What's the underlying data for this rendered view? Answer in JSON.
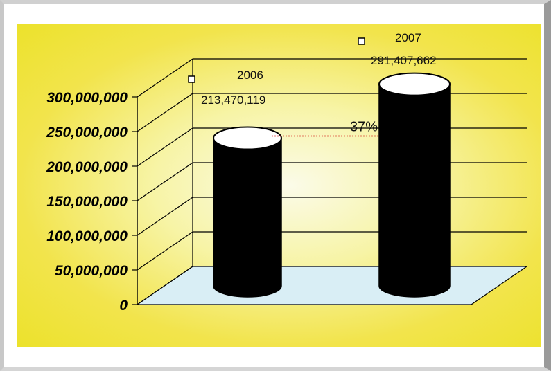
{
  "chart_data": {
    "type": "bar",
    "subtype": "3d-cylinder",
    "categories": [
      "2006",
      "2007"
    ],
    "values": [
      213470119,
      291407662
    ],
    "data_labels": [
      "213,470,119",
      "291,407,662"
    ],
    "ylim": [
      0,
      300000000
    ],
    "yticks": [
      0,
      50000000,
      100000000,
      150000000,
      200000000,
      250000000,
      300000000
    ],
    "ytick_labels": [
      "0",
      "50,000,000",
      "100,000,000",
      "150,000,000",
      "200,000,000",
      "250,000,000",
      "300,000,000"
    ],
    "annotation": "37%",
    "grid": true,
    "colors": {
      "bar": "#000000",
      "bar_top": "#ffffff",
      "floor": "#d9eef5",
      "background": "#f2e44c",
      "connector": "#cc0000"
    }
  }
}
